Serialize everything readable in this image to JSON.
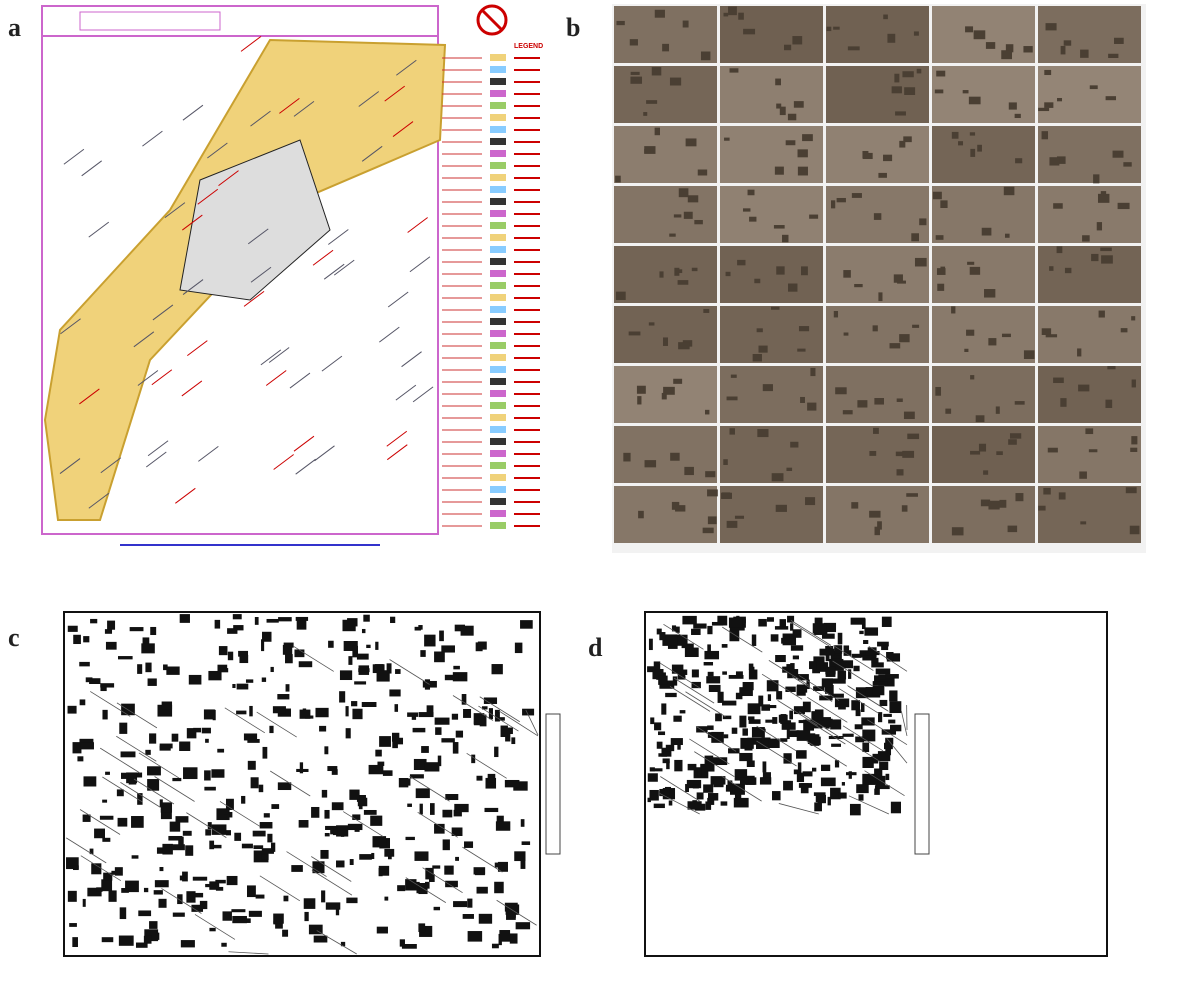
{
  "panels": [
    {
      "label": "a",
      "legend_title": "LEGEND"
    },
    {
      "label": "b"
    },
    {
      "label": "c"
    },
    {
      "label": "d"
    }
  ]
}
